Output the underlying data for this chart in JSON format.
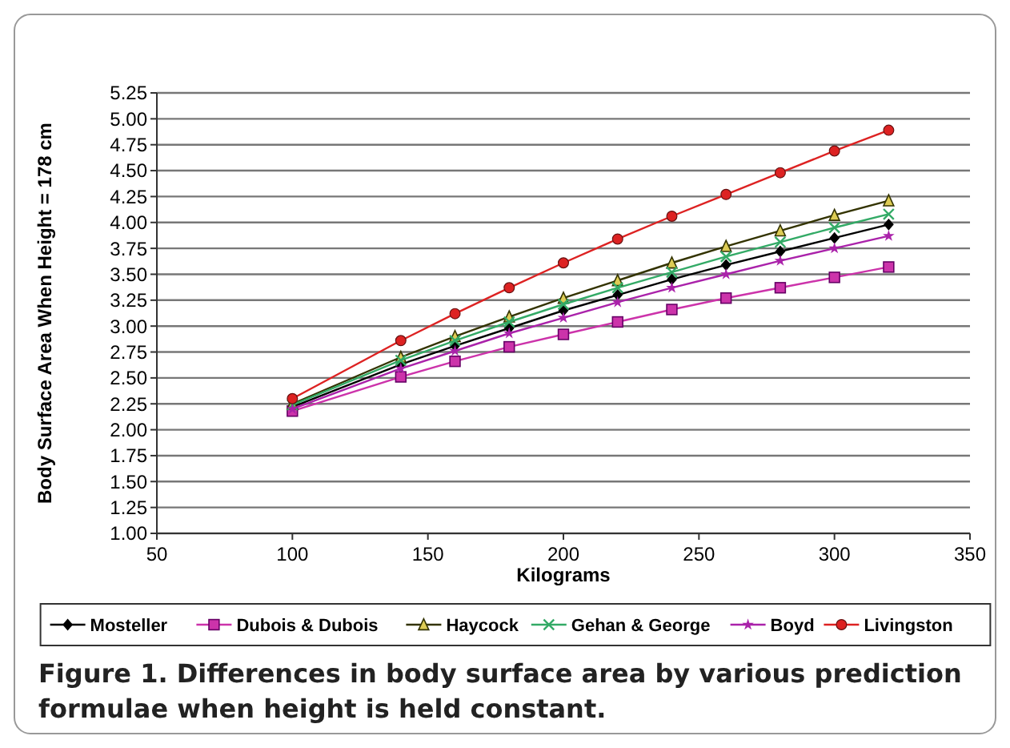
{
  "chart_data": {
    "type": "line",
    "xlabel": "Kilograms",
    "ylabel": "Body Surface Area When Height = 178 cm",
    "x": [
      100,
      140,
      160,
      180,
      200,
      220,
      240,
      260,
      280,
      300,
      320
    ],
    "xlim": [
      50,
      350
    ],
    "xticks": [
      50,
      100,
      150,
      200,
      250,
      300,
      350
    ],
    "ylim": [
      1,
      5.25
    ],
    "yticks": [
      {
        "value": 1,
        "label": "1.00"
      },
      {
        "value": 1.25,
        "label": "1.25"
      },
      {
        "value": 1.5,
        "label": "1.50"
      },
      {
        "value": 1.75,
        "label": "1.75"
      },
      {
        "value": 2,
        "label": "2.00"
      },
      {
        "value": 2.25,
        "label": "2.25"
      },
      {
        "value": 2.5,
        "label": "2.50"
      },
      {
        "value": 2.75,
        "label": "2.75"
      },
      {
        "value": 3,
        "label": "3.00"
      },
      {
        "value": 3.25,
        "label": "3.25"
      },
      {
        "value": 3.5,
        "label": "3.50"
      },
      {
        "value": 3.75,
        "label": "3.75"
      },
      {
        "value": 4,
        "label": "4.00"
      },
      {
        "value": 4.25,
        "label": "4.25"
      },
      {
        "value": 4.5,
        "label": "4.50"
      },
      {
        "value": 4.75,
        "label": "4.75"
      },
      {
        "value": 5,
        "label": "5.00"
      },
      {
        "value": 5.25,
        "label": "5.25"
      }
    ],
    "grid": "y",
    "legend": "bottom",
    "line_style": "solid",
    "series": [
      {
        "name": "Mosteller",
        "color": "#000000",
        "marker": "diamond",
        "values": [
          2.22,
          2.63,
          2.81,
          2.98,
          3.15,
          3.3,
          3.45,
          3.59,
          3.72,
          3.85,
          3.98
        ]
      },
      {
        "name": "Dubois & Dubois",
        "color": "#cc33aa",
        "marker": "square",
        "values": [
          2.18,
          2.51,
          2.66,
          2.8,
          2.92,
          3.04,
          3.16,
          3.27,
          3.37,
          3.47,
          3.57
        ]
      },
      {
        "name": "Haycock",
        "color": "#333300",
        "marker": "triangle",
        "values": [
          2.25,
          2.7,
          2.9,
          3.09,
          3.27,
          3.44,
          3.61,
          3.77,
          3.92,
          4.07,
          4.21
        ]
      },
      {
        "name": "Gehan & George",
        "color": "#33aa66",
        "marker": "cross",
        "values": [
          2.24,
          2.67,
          2.86,
          3.04,
          3.21,
          3.37,
          3.52,
          3.67,
          3.81,
          3.95,
          4.08
        ]
      },
      {
        "name": "Boyd",
        "color": "#aa22aa",
        "marker": "star",
        "values": [
          2.2,
          2.59,
          2.76,
          2.93,
          3.08,
          3.23,
          3.37,
          3.5,
          3.63,
          3.75,
          3.87
        ]
      },
      {
        "name": "Livingston",
        "color": "#dd2222",
        "marker": "circle",
        "values": [
          2.3,
          2.86,
          3.12,
          3.37,
          3.61,
          3.84,
          4.06,
          4.27,
          4.48,
          4.69,
          4.89
        ]
      }
    ],
    "annotations": [
      "Figure 1. Differences in body surface area by various prediction formulae when height is held constant."
    ]
  }
}
